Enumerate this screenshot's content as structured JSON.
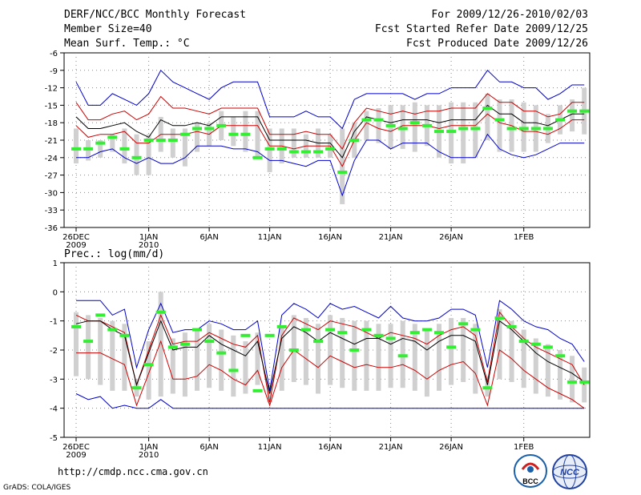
{
  "header": {
    "title": "DERF/NCC/BCC Monthly Forecast",
    "member_size": "Member Size=40",
    "for_range": "For 2009/12/26-2010/02/03",
    "fcst_started": "Fcst Started Refer Date 2009/12/25",
    "fcst_produced": "Fcst Produced Date 2009/12/26"
  },
  "footer": {
    "url": "http://cmdp.ncc.cma.gov.cn",
    "credit": "GrADS: COLA/IGES",
    "logo_left_text": "BCC",
    "logo_right_text": "NCC"
  },
  "colors": {
    "mean": "#000000",
    "spread": "#cc0000",
    "extreme": "#0000cc",
    "obs": "#33ee33",
    "box": "#d0d0d0"
  },
  "chart_data": [
    {
      "type": "line",
      "title": "Mean Surf. Temp.: °C",
      "ylim": [
        -36,
        -6
      ],
      "yticks": [
        -6,
        -9,
        -12,
        -15,
        -18,
        -21,
        -24,
        -27,
        -30,
        -33,
        -36
      ],
      "xticks": [
        {
          "day": 0,
          "label": "26DEC",
          "sub": "2009"
        },
        {
          "day": 6,
          "label": "1JAN",
          "sub": "2010"
        },
        {
          "day": 11,
          "label": "6JAN",
          "sub": ""
        },
        {
          "day": 16,
          "label": "11JAN",
          "sub": ""
        },
        {
          "day": 21,
          "label": "16JAN",
          "sub": ""
        },
        {
          "day": 26,
          "label": "21JAN",
          "sub": ""
        },
        {
          "day": 31,
          "label": "26JAN",
          "sub": ""
        },
        {
          "day": 37,
          "label": "1FEB",
          "sub": ""
        }
      ],
      "series": [
        {
          "name": "max",
          "values": [
            -11,
            -15,
            -15,
            -13,
            -14,
            -15,
            -13,
            -9,
            -11,
            -12,
            -13,
            -14,
            -12,
            -11,
            -11,
            -11,
            -17,
            -17,
            -17,
            -16,
            -17,
            -17,
            -19,
            -14,
            -13,
            -13,
            -13,
            -13,
            -14,
            -13,
            -13,
            -12,
            -12,
            -12,
            -9,
            -11,
            -11,
            -12,
            -12,
            -14,
            -13,
            -11.5,
            -11.5
          ]
        },
        {
          "name": "upper",
          "values": [
            -14.5,
            -17.5,
            -17.5,
            -16.5,
            -16,
            -17.5,
            -16.5,
            -13.5,
            -15.5,
            -15.5,
            -16,
            -16.5,
            -15.5,
            -15.5,
            -15.5,
            -15.5,
            -20,
            -20,
            -20,
            -19.5,
            -20,
            -20,
            -22.5,
            -18,
            -15.5,
            -16,
            -16.5,
            -16,
            -16.5,
            -16,
            -16,
            -15.5,
            -15.5,
            -15.5,
            -13,
            -14.5,
            -14.5,
            -16,
            -16,
            -17,
            -16.5,
            -14.5,
            -14.5
          ]
        },
        {
          "name": "mean",
          "values": [
            -17,
            -19,
            -19,
            -18.5,
            -18,
            -19.5,
            -20.5,
            -17.5,
            -18.5,
            -18.5,
            -18,
            -18.5,
            -17,
            -17,
            -17,
            -17,
            -21,
            -21,
            -21,
            -21,
            -21.5,
            -21.5,
            -24,
            -19.5,
            -17,
            -17.5,
            -18,
            -17.5,
            -17.5,
            -17.5,
            -18,
            -17.5,
            -17.5,
            -17.5,
            -15,
            -16.5,
            -16.5,
            -18,
            -18,
            -18.5,
            -17.5,
            -16.5,
            -16.5
          ]
        },
        {
          "name": "lower",
          "values": [
            -18.5,
            -20.5,
            -20,
            -20,
            -19.5,
            -21.5,
            -21.5,
            -20,
            -20,
            -20,
            -19.5,
            -20,
            -18.5,
            -18.5,
            -18.5,
            -18.5,
            -22,
            -22,
            -22.5,
            -22,
            -22,
            -22,
            -25.5,
            -21,
            -18,
            -19,
            -19.5,
            -18.5,
            -18.5,
            -18.5,
            -19,
            -18.5,
            -18.5,
            -18.5,
            -16.5,
            -18,
            -18.5,
            -19.5,
            -19.5,
            -20,
            -19,
            -17.5,
            -17.5
          ]
        },
        {
          "name": "min",
          "values": [
            -24,
            -24,
            -23,
            -22.5,
            -24,
            -25,
            -24,
            -25,
            -25,
            -24,
            -22,
            -22,
            -22,
            -22.5,
            -22.5,
            -23,
            -24.5,
            -24.5,
            -25,
            -25.5,
            -24.5,
            -24.5,
            -30.5,
            -24.5,
            -21,
            -21,
            -22.5,
            -21.5,
            -21.5,
            -21.5,
            -23,
            -24,
            -24,
            -24,
            -20,
            -22.5,
            -23.5,
            -24,
            -23.5,
            -22.5,
            -21.5,
            -21.5,
            -21.5
          ]
        },
        {
          "name": "box_high",
          "values": [
            -19,
            -21,
            -21,
            -20,
            -19,
            -20,
            -20,
            -17,
            -19,
            -19,
            -18,
            -18,
            -16,
            -17,
            -16,
            -16,
            -19,
            -19,
            -19,
            -20,
            -19,
            -20,
            -19,
            -18,
            -16,
            -15.5,
            -15,
            -15,
            -14.5,
            -15,
            -15,
            -14.5,
            -14.5,
            -14.5,
            -13,
            -14,
            -14,
            -14.5,
            -15,
            -16.5,
            -15,
            -14,
            -12
          ]
        },
        {
          "name": "box_low",
          "values": [
            -25,
            -24.5,
            -24,
            -23,
            -25,
            -27,
            -27,
            -23,
            -24,
            -25.5,
            -23,
            -22,
            -21,
            -22,
            -23,
            -24,
            -26.5,
            -25,
            -24,
            -24,
            -24,
            -24,
            -32,
            -24,
            -21,
            -21.5,
            -22.5,
            -22.5,
            -23,
            -22,
            -24,
            -25,
            -25,
            -24,
            -21,
            -23,
            -23,
            -23,
            -23,
            -21.5,
            -20,
            -19.5,
            -20
          ]
        },
        {
          "name": "observed",
          "values": [
            -22.5,
            -22.5,
            -21.5,
            -20.5,
            -22.5,
            -24,
            -21,
            -21,
            -21,
            -20,
            -19,
            -19,
            -18.5,
            -20,
            -20,
            -24,
            -22.5,
            -22.5,
            -23,
            -23,
            -23,
            -22.5,
            -26.5,
            -21,
            -17.5,
            -17.5,
            -18.5,
            -19,
            -18,
            -18.5,
            -19.5,
            -19.5,
            -19,
            -19,
            -15.5,
            -17.5,
            -19,
            -19,
            -19,
            -19,
            -17.5,
            -16,
            -16
          ]
        }
      ]
    },
    {
      "type": "line",
      "title": "Prec.: log(mm/d)",
      "ylim": [
        -5,
        1
      ],
      "yticks": [
        1,
        0,
        -1,
        -2,
        -3,
        -4,
        -5
      ],
      "xticks": [
        {
          "day": 0,
          "label": "26DEC",
          "sub": "2009"
        },
        {
          "day": 6,
          "label": "1JAN",
          "sub": "2010"
        },
        {
          "day": 11,
          "label": "6JAN",
          "sub": ""
        },
        {
          "day": 16,
          "label": "11JAN",
          "sub": ""
        },
        {
          "day": 21,
          "label": "16JAN",
          "sub": ""
        },
        {
          "day": 26,
          "label": "21JAN",
          "sub": ""
        },
        {
          "day": 31,
          "label": "26JAN",
          "sub": ""
        },
        {
          "day": 37,
          "label": "1FEB",
          "sub": ""
        }
      ],
      "series": [
        {
          "name": "max",
          "values": [
            -0.3,
            -0.3,
            -0.3,
            -0.8,
            -0.6,
            -2.6,
            -1.3,
            -0.4,
            -1.4,
            -1.3,
            -1.3,
            -1.0,
            -1.1,
            -1.3,
            -1.3,
            -1.0,
            -3.4,
            -0.8,
            -0.4,
            -0.6,
            -0.9,
            -0.4,
            -0.6,
            -0.5,
            -0.7,
            -0.9,
            -0.5,
            -0.9,
            -1.0,
            -1.0,
            -0.9,
            -0.6,
            -0.6,
            -0.8,
            -2.6,
            -0.3,
            -0.6,
            -1.0,
            -1.2,
            -1.3,
            -1.6,
            -1.8,
            -2.4
          ]
        },
        {
          "name": "upper",
          "values": [
            -0.8,
            -1.0,
            -1.0,
            -1.2,
            -1.4,
            -3.2,
            -2.0,
            -0.8,
            -1.8,
            -1.7,
            -1.7,
            -1.4,
            -1.6,
            -1.8,
            -1.9,
            -1.5,
            -3.8,
            -1.5,
            -0.9,
            -1.1,
            -1.3,
            -1.0,
            -1.1,
            -1.2,
            -1.4,
            -1.6,
            -1.4,
            -1.5,
            -1.6,
            -1.8,
            -1.5,
            -1.3,
            -1.2,
            -1.5,
            -3.1,
            -0.7,
            -1.2,
            -1.6,
            -1.9,
            -2.1,
            -2.3,
            -2.5,
            -3.2
          ]
        },
        {
          "name": "mean",
          "values": [
            -1.1,
            -1.0,
            -1.0,
            -1.3,
            -1.5,
            -3.2,
            -2.1,
            -1.0,
            -2.0,
            -1.9,
            -1.9,
            -1.5,
            -1.8,
            -2.0,
            -2.2,
            -1.7,
            -3.5,
            -1.6,
            -1.2,
            -1.4,
            -1.7,
            -1.4,
            -1.6,
            -1.8,
            -1.6,
            -1.6,
            -1.8,
            -1.6,
            -1.7,
            -2.0,
            -1.7,
            -1.5,
            -1.5,
            -1.7,
            -3.2,
            -1.0,
            -1.3,
            -1.7,
            -2.1,
            -2.4,
            -2.6,
            -2.8,
            -3.1
          ]
        },
        {
          "name": "lower",
          "values": [
            -2.1,
            -2.1,
            -2.1,
            -2.3,
            -2.5,
            -3.9,
            -2.8,
            -1.7,
            -3.0,
            -3.0,
            -2.9,
            -2.5,
            -2.7,
            -3.0,
            -3.2,
            -2.7,
            -3.9,
            -2.6,
            -2.0,
            -2.3,
            -2.6,
            -2.2,
            -2.4,
            -2.6,
            -2.5,
            -2.6,
            -2.6,
            -2.5,
            -2.7,
            -3.0,
            -2.7,
            -2.5,
            -2.4,
            -2.8,
            -3.9,
            -2.0,
            -2.3,
            -2.7,
            -3.0,
            -3.3,
            -3.5,
            -3.7,
            -4.0
          ]
        },
        {
          "name": "min",
          "values": [
            -3.5,
            -3.7,
            -3.6,
            -4.0,
            -3.9,
            -4.0,
            -4.0,
            -3.7,
            -4.0,
            -4.0,
            -4.0,
            -4.0,
            -4.0,
            -4.0,
            -4.0,
            -4.0,
            -4.0,
            -4.0,
            -4.0,
            -4.0,
            -4.0,
            -4.0,
            -4.0,
            -4.0,
            -4.0,
            -4.0,
            -4.0,
            -4.0,
            -4.0,
            -4.0,
            -4.0,
            -4.0,
            -4.0,
            -4.0,
            -4.0,
            -4.0,
            -4.0,
            -4.0,
            -4.0,
            -4.0,
            -4.0,
            -4.0,
            -4.0
          ]
        },
        {
          "name": "box_high",
          "values": [
            -0.7,
            -0.8,
            -0.9,
            -1.0,
            -1.1,
            -3.0,
            -1.7,
            0.0,
            -1.6,
            -1.4,
            -1.3,
            -1.1,
            -1.3,
            -1.5,
            -1.7,
            -1.4,
            -3.2,
            -1.2,
            -0.8,
            -0.9,
            -1.1,
            -0.8,
            -0.9,
            -1.0,
            -1.0,
            -1.1,
            -1.1,
            -1.0,
            -1.1,
            -1.3,
            -1.1,
            -0.9,
            -0.9,
            -1.1,
            -2.9,
            -0.6,
            -1.0,
            -1.3,
            -1.6,
            -1.8,
            -2.0,
            -2.2,
            -2.6
          ]
        },
        {
          "name": "box_low",
          "values": [
            -2.9,
            -3.0,
            -3.2,
            -3.4,
            -3.4,
            -3.6,
            -3.7,
            -3.6,
            -3.5,
            -3.6,
            -3.4,
            -3.3,
            -3.4,
            -3.6,
            -3.5,
            -3.2,
            -3.8,
            -3.4,
            -3.1,
            -3.2,
            -3.5,
            -3.2,
            -3.3,
            -3.4,
            -3.4,
            -3.4,
            -3.3,
            -3.3,
            -3.4,
            -3.6,
            -3.4,
            -3.2,
            -3.1,
            -3.5,
            -3.6,
            -3.0,
            -3.1,
            -3.3,
            -3.5,
            -3.6,
            -3.7,
            -3.8,
            -3.8
          ]
        },
        {
          "name": "observed",
          "values": [
            -1.2,
            -1.7,
            -0.8,
            -1.3,
            -1.5,
            -3.3,
            -2.5,
            -0.7,
            -1.9,
            -1.8,
            -1.3,
            -1.7,
            -2.1,
            -2.7,
            -1.5,
            -3.4,
            -1.5,
            -1.2,
            -2.0,
            -1.3,
            -1.7,
            -1.3,
            -1.4,
            -2.0,
            -1.3,
            -1.5,
            -1.6,
            -2.2,
            -1.4,
            -1.3,
            -1.4,
            -1.9,
            -1.1,
            -1.3,
            -3.3,
            -0.9,
            -1.2,
            -1.7,
            -1.8,
            -1.9,
            -2.2,
            -3.1,
            -3.1
          ]
        }
      ]
    }
  ]
}
